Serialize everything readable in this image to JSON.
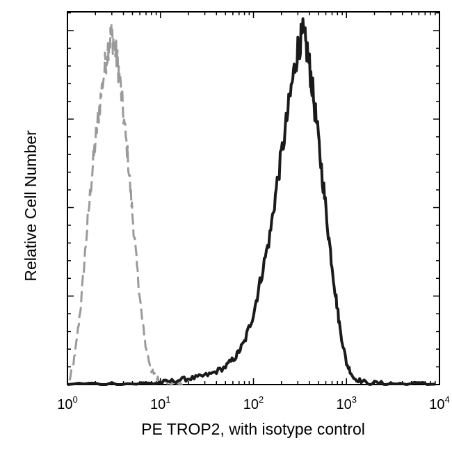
{
  "chart_data": {
    "type": "line",
    "title": "",
    "xlabel": "PE TROP2, with isotype control",
    "ylabel": "Relative Cell Number",
    "xscale": "log",
    "xlim": [
      1,
      10000
    ],
    "ylim": [
      0,
      100
    ],
    "grid": false,
    "legend": "none",
    "x_ticks": [
      {
        "base": "10",
        "exp": "0",
        "value": 1
      },
      {
        "base": "10",
        "exp": "1",
        "value": 10
      },
      {
        "base": "10",
        "exp": "2",
        "value": 100
      },
      {
        "base": "10",
        "exp": "3",
        "value": 1000
      },
      {
        "base": "10",
        "exp": "4",
        "value": 10000
      }
    ],
    "series": [
      {
        "style": "dashed",
        "color": "#9a9a9a",
        "x": [
          1.05,
          1.2,
          1.4,
          1.6,
          1.8,
          2.0,
          2.2,
          2.5,
          2.8,
          3.0,
          3.3,
          3.6,
          4.0,
          4.5,
          5.0,
          5.6,
          6.3,
          7.0,
          8.0,
          9.0,
          10,
          12,
          14,
          18
        ],
        "y": [
          1,
          8,
          23,
          42,
          57,
          69,
          78,
          89,
          97,
          99,
          94,
          88,
          76,
          63,
          48,
          33,
          19,
          10,
          4,
          2,
          1.2,
          0.6,
          0.3,
          0.1
        ]
      },
      {
        "style": "solid",
        "color": "#1a1a1a",
        "x": [
          1,
          3,
          8,
          12,
          18,
          25,
          35,
          50,
          65,
          80,
          100,
          120,
          150,
          180,
          220,
          260,
          300,
          340,
          380,
          420,
          480,
          560,
          650,
          750,
          850,
          1000,
          1200,
          1600,
          2500,
          4000,
          9000
        ],
        "y": [
          0.1,
          0.2,
          0.3,
          0.8,
          1.5,
          2.0,
          3.0,
          5.0,
          8.0,
          12.0,
          20.0,
          30.0,
          42.0,
          57.0,
          72.0,
          85.0,
          95.0,
          99.0,
          94.0,
          86.0,
          73.0,
          57.0,
          41.0,
          27.0,
          16.0,
          6.0,
          1.8,
          0.6,
          0.3,
          0.2,
          0.1
        ]
      }
    ]
  }
}
